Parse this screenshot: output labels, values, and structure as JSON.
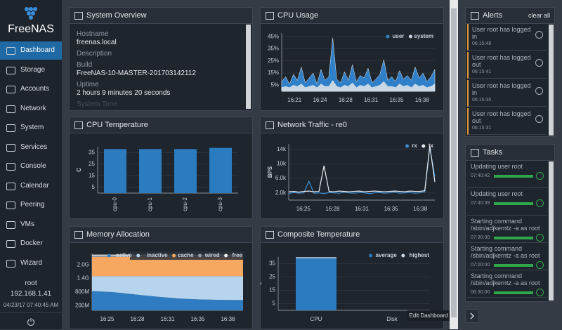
{
  "sidebar": {
    "logo": "FreeNAS",
    "menu": [
      "Dashboard",
      "Storage",
      "Accounts",
      "Network",
      "System",
      "Services",
      "Console",
      "Calendar",
      "Peering",
      "VMs",
      "Docker",
      "Wizard"
    ],
    "active": 0,
    "user": "root",
    "ip": "192.168.1.41",
    "datetime": "04/23/17 07:40:45 AM"
  },
  "system_overview": {
    "title": "System Overview",
    "fields": [
      {
        "label": "Hostname",
        "value": "freenas.local"
      },
      {
        "label": "Description"
      },
      {
        "label": "Build",
        "value": "FreeNAS-10-MASTER-201703142112"
      },
      {
        "label": "Uptime",
        "value": "2 hours 9 minutes 20 seconds"
      },
      {
        "label": "System Time"
      }
    ]
  },
  "cpu_usage": {
    "title": "CPU Usage",
    "type": "area",
    "ylim": [
      0,
      48
    ],
    "yticks": [
      {
        "value": 5,
        "label": "5%"
      },
      {
        "value": 15,
        "label": "15%"
      },
      {
        "value": 25,
        "label": "25%"
      },
      {
        "value": 35,
        "label": "35%"
      },
      {
        "value": 45,
        "label": "45%"
      }
    ],
    "xtick_labels": [
      "16:21",
      "16:24",
      "16:28",
      "16:31",
      "16:35",
      "16:38"
    ],
    "series": [
      {
        "name": "user",
        "color": "#2f80c8",
        "values": [
          8,
          12,
          6,
          14,
          9,
          20,
          7,
          11,
          15,
          6,
          18,
          9,
          12,
          44,
          10,
          7,
          16,
          9,
          22,
          8,
          13,
          11,
          19,
          7,
          10,
          14,
          26,
          9,
          12,
          8,
          17,
          10,
          13,
          9,
          20,
          11,
          15,
          8,
          12,
          18
        ]
      },
      {
        "name": "system",
        "color": "#c9d6e4",
        "values": [
          3,
          4,
          3,
          5,
          4,
          6,
          3,
          4,
          5,
          3,
          6,
          4,
          4,
          9,
          4,
          3,
          5,
          4,
          7,
          3,
          5,
          4,
          6,
          3,
          4,
          5,
          8,
          4,
          4,
          3,
          6,
          4,
          5,
          3,
          6,
          4,
          5,
          3,
          4,
          6
        ]
      }
    ]
  },
  "cpu_temperature": {
    "title": "CPU Temperature",
    "type": "bar",
    "ylabel": "C",
    "color": "#2b7bc0",
    "categories": [
      "cpu-0",
      "cpu-1",
      "cpu-2",
      "cpu-3"
    ],
    "values": [
      38,
      38,
      38,
      39
    ],
    "ylim": [
      0,
      40
    ],
    "yticks": [
      5,
      15,
      25,
      35
    ]
  },
  "network_traffic": {
    "title": "Network Traffic - re0",
    "type": "line",
    "ylabel": "BPS",
    "ylim": [
      0,
      15500
    ],
    "yticks": [
      {
        "value": 2000,
        "label": "2.0k"
      },
      {
        "value": 6000,
        "label": "6.0k"
      },
      {
        "value": 10000,
        "label": "10k"
      },
      {
        "value": 14000,
        "label": "14k"
      }
    ],
    "xtick_labels": [
      "16:25",
      "16:28",
      "16:31",
      "16:35",
      "16:38"
    ],
    "series": [
      {
        "name": "rx",
        "color": "#3b8fd6",
        "values": [
          1800,
          2100,
          1900,
          2000,
          5200,
          1900,
          2000,
          1800,
          2100,
          2000,
          1900,
          2200,
          2000,
          1900,
          2100,
          2000,
          1800,
          2000,
          2100,
          1900,
          2000,
          2200,
          1900,
          2000,
          2100,
          1900,
          2000,
          2300,
          14500,
          6500
        ]
      },
      {
        "name": "tx",
        "color": "#e8edf2",
        "values": [
          2300,
          2400,
          2200,
          2400,
          2500,
          2300,
          2400,
          9500,
          2400,
          2300,
          2500,
          2400,
          2300,
          2400,
          2500,
          2300,
          2400,
          2500,
          2400,
          2300,
          2400,
          2500,
          2400,
          2300,
          2500,
          2400,
          2400,
          2600,
          15000,
          5000
        ]
      }
    ]
  },
  "memory_allocation": {
    "title": "Memory Allocation",
    "type": "stacked_area",
    "ylim": [
      0,
      2500
    ],
    "yticks": [
      {
        "value": 200,
        "label": "200M"
      },
      {
        "value": 800,
        "label": "800M"
      },
      {
        "value": 1400,
        "label": "1.4G"
      },
      {
        "value": 2000,
        "label": "2.0G"
      }
    ],
    "xtick_labels": [
      "16:25",
      "16:28",
      "16:31",
      "16:35",
      "16:38"
    ],
    "series": [
      {
        "name": "active",
        "color": "#2f7cc2",
        "values": [
          850,
          800,
          700,
          600,
          520,
          480,
          460,
          450
        ]
      },
      {
        "name": "inactive",
        "color": "#b7d4ee",
        "values": [
          650,
          700,
          800,
          900,
          980,
          1020,
          1040,
          1050
        ]
      },
      {
        "name": "cache",
        "color": "#f6a860",
        "values": [
          850,
          850,
          850,
          850,
          850,
          850,
          850,
          850
        ]
      },
      {
        "name": "wired",
        "color": "#9aa0a8",
        "values": [
          60,
          60,
          60,
          60,
          60,
          60,
          60,
          60
        ]
      },
      {
        "name": "free",
        "color": "#eeeeee",
        "values": [
          40,
          40,
          40,
          40,
          40,
          40,
          40,
          40
        ]
      }
    ]
  },
  "composite_temperature": {
    "title": "Composite Temperature",
    "type": "bar",
    "ylabel": "C",
    "categories": [
      "CPU",
      "Disk"
    ],
    "ylim": [
      0,
      40
    ],
    "yticks": [
      5,
      15,
      25,
      35
    ],
    "series": [
      {
        "name": "average",
        "color": "#2b7bc0",
        "values": [
          39,
          null
        ]
      },
      {
        "name": "highest",
        "color": "#c9d6e4",
        "values": [
          39.5,
          null
        ]
      }
    ]
  },
  "alerts": {
    "title": "Alerts",
    "clear": "clear all",
    "items": [
      {
        "message": "User root has logged in",
        "time": "06:15:48"
      },
      {
        "message": "User root has logged out",
        "time": "06:15:41"
      },
      {
        "message": "User root has logged in",
        "time": "06:15:35"
      },
      {
        "message": "User root has logged out",
        "time": "06:15:31"
      }
    ]
  },
  "tasks": {
    "title": "Tasks",
    "items": [
      {
        "name": "Updating user root",
        "time": "07:40:42",
        "progress": 100
      },
      {
        "name": "Updating user root",
        "time": "07:40:39",
        "progress": 100
      },
      {
        "name": "Starting command /sbin/adjkerntz -a as root",
        "time": "07:30:00",
        "progress": 100
      },
      {
        "name": "Starting command /sbin/adjkerntz -a as root",
        "time": "07:00:00",
        "progress": 100
      },
      {
        "name": "Starting command /sbin/adjkerntz -a as root",
        "time": "06:30:00",
        "progress": 100
      }
    ]
  },
  "tooltip": "Edit Dashboard"
}
